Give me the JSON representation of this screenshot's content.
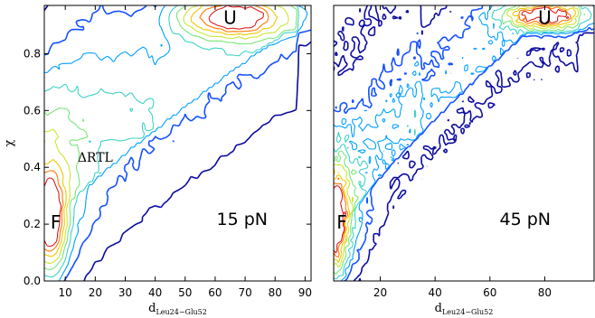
{
  "chart_data": [
    {
      "type": "contour",
      "title": "",
      "panel_label": "15 pN",
      "xlabel": "d",
      "xlabel_sub": "Leu24−Glu52",
      "ylabel": "χ",
      "xlim": [
        3,
        92
      ],
      "ylim": [
        0.0,
        0.97
      ],
      "xticks": [
        "10",
        "20",
        "30",
        "40",
        "50",
        "60",
        "70",
        "80",
        "90"
      ],
      "xtick_values": [
        10,
        20,
        30,
        40,
        50,
        60,
        70,
        80,
        90
      ],
      "yticks": [
        "0.0",
        "0.2",
        "0.4",
        "0.6",
        "0.8"
      ],
      "ytick_values": [
        0.0,
        0.2,
        0.4,
        0.6,
        0.8
      ],
      "basins": [
        {
          "label": "F",
          "x": 5,
          "y": 0.21
        },
        {
          "label": "U",
          "x": 65,
          "y": 0.93
        }
      ],
      "annotations": [
        {
          "text": "ΔRTL",
          "x": 20,
          "y": 0.42
        }
      ],
      "contour_colors": [
        "#0a0aa0",
        "#1450ff",
        "#00a0ff",
        "#3cd2c8",
        "#78e678",
        "#c8e632",
        "#f0c800",
        "#ff7800",
        "#dc1e1e"
      ]
    },
    {
      "type": "contour",
      "title": "",
      "panel_label": "45 pN",
      "xlabel": "d",
      "xlabel_sub": "Leu24−Glu52",
      "ylabel": "",
      "xlim": [
        3,
        98
      ],
      "ylim": [
        0.0,
        0.97
      ],
      "xticks": [
        "20",
        "40",
        "60",
        "80"
      ],
      "xtick_values": [
        20,
        40,
        60,
        80
      ],
      "yticks": [],
      "ytick_values": [],
      "basins": [
        {
          "label": "F",
          "x": 4,
          "y": 0.21
        },
        {
          "label": "U",
          "x": 80,
          "y": 0.93
        }
      ],
      "annotations": [],
      "contour_colors": [
        "#0a0aa0",
        "#1450ff",
        "#00a0ff",
        "#3cd2c8",
        "#78e678",
        "#c8e632",
        "#f0c800",
        "#ff7800",
        "#dc1e1e"
      ]
    }
  ]
}
